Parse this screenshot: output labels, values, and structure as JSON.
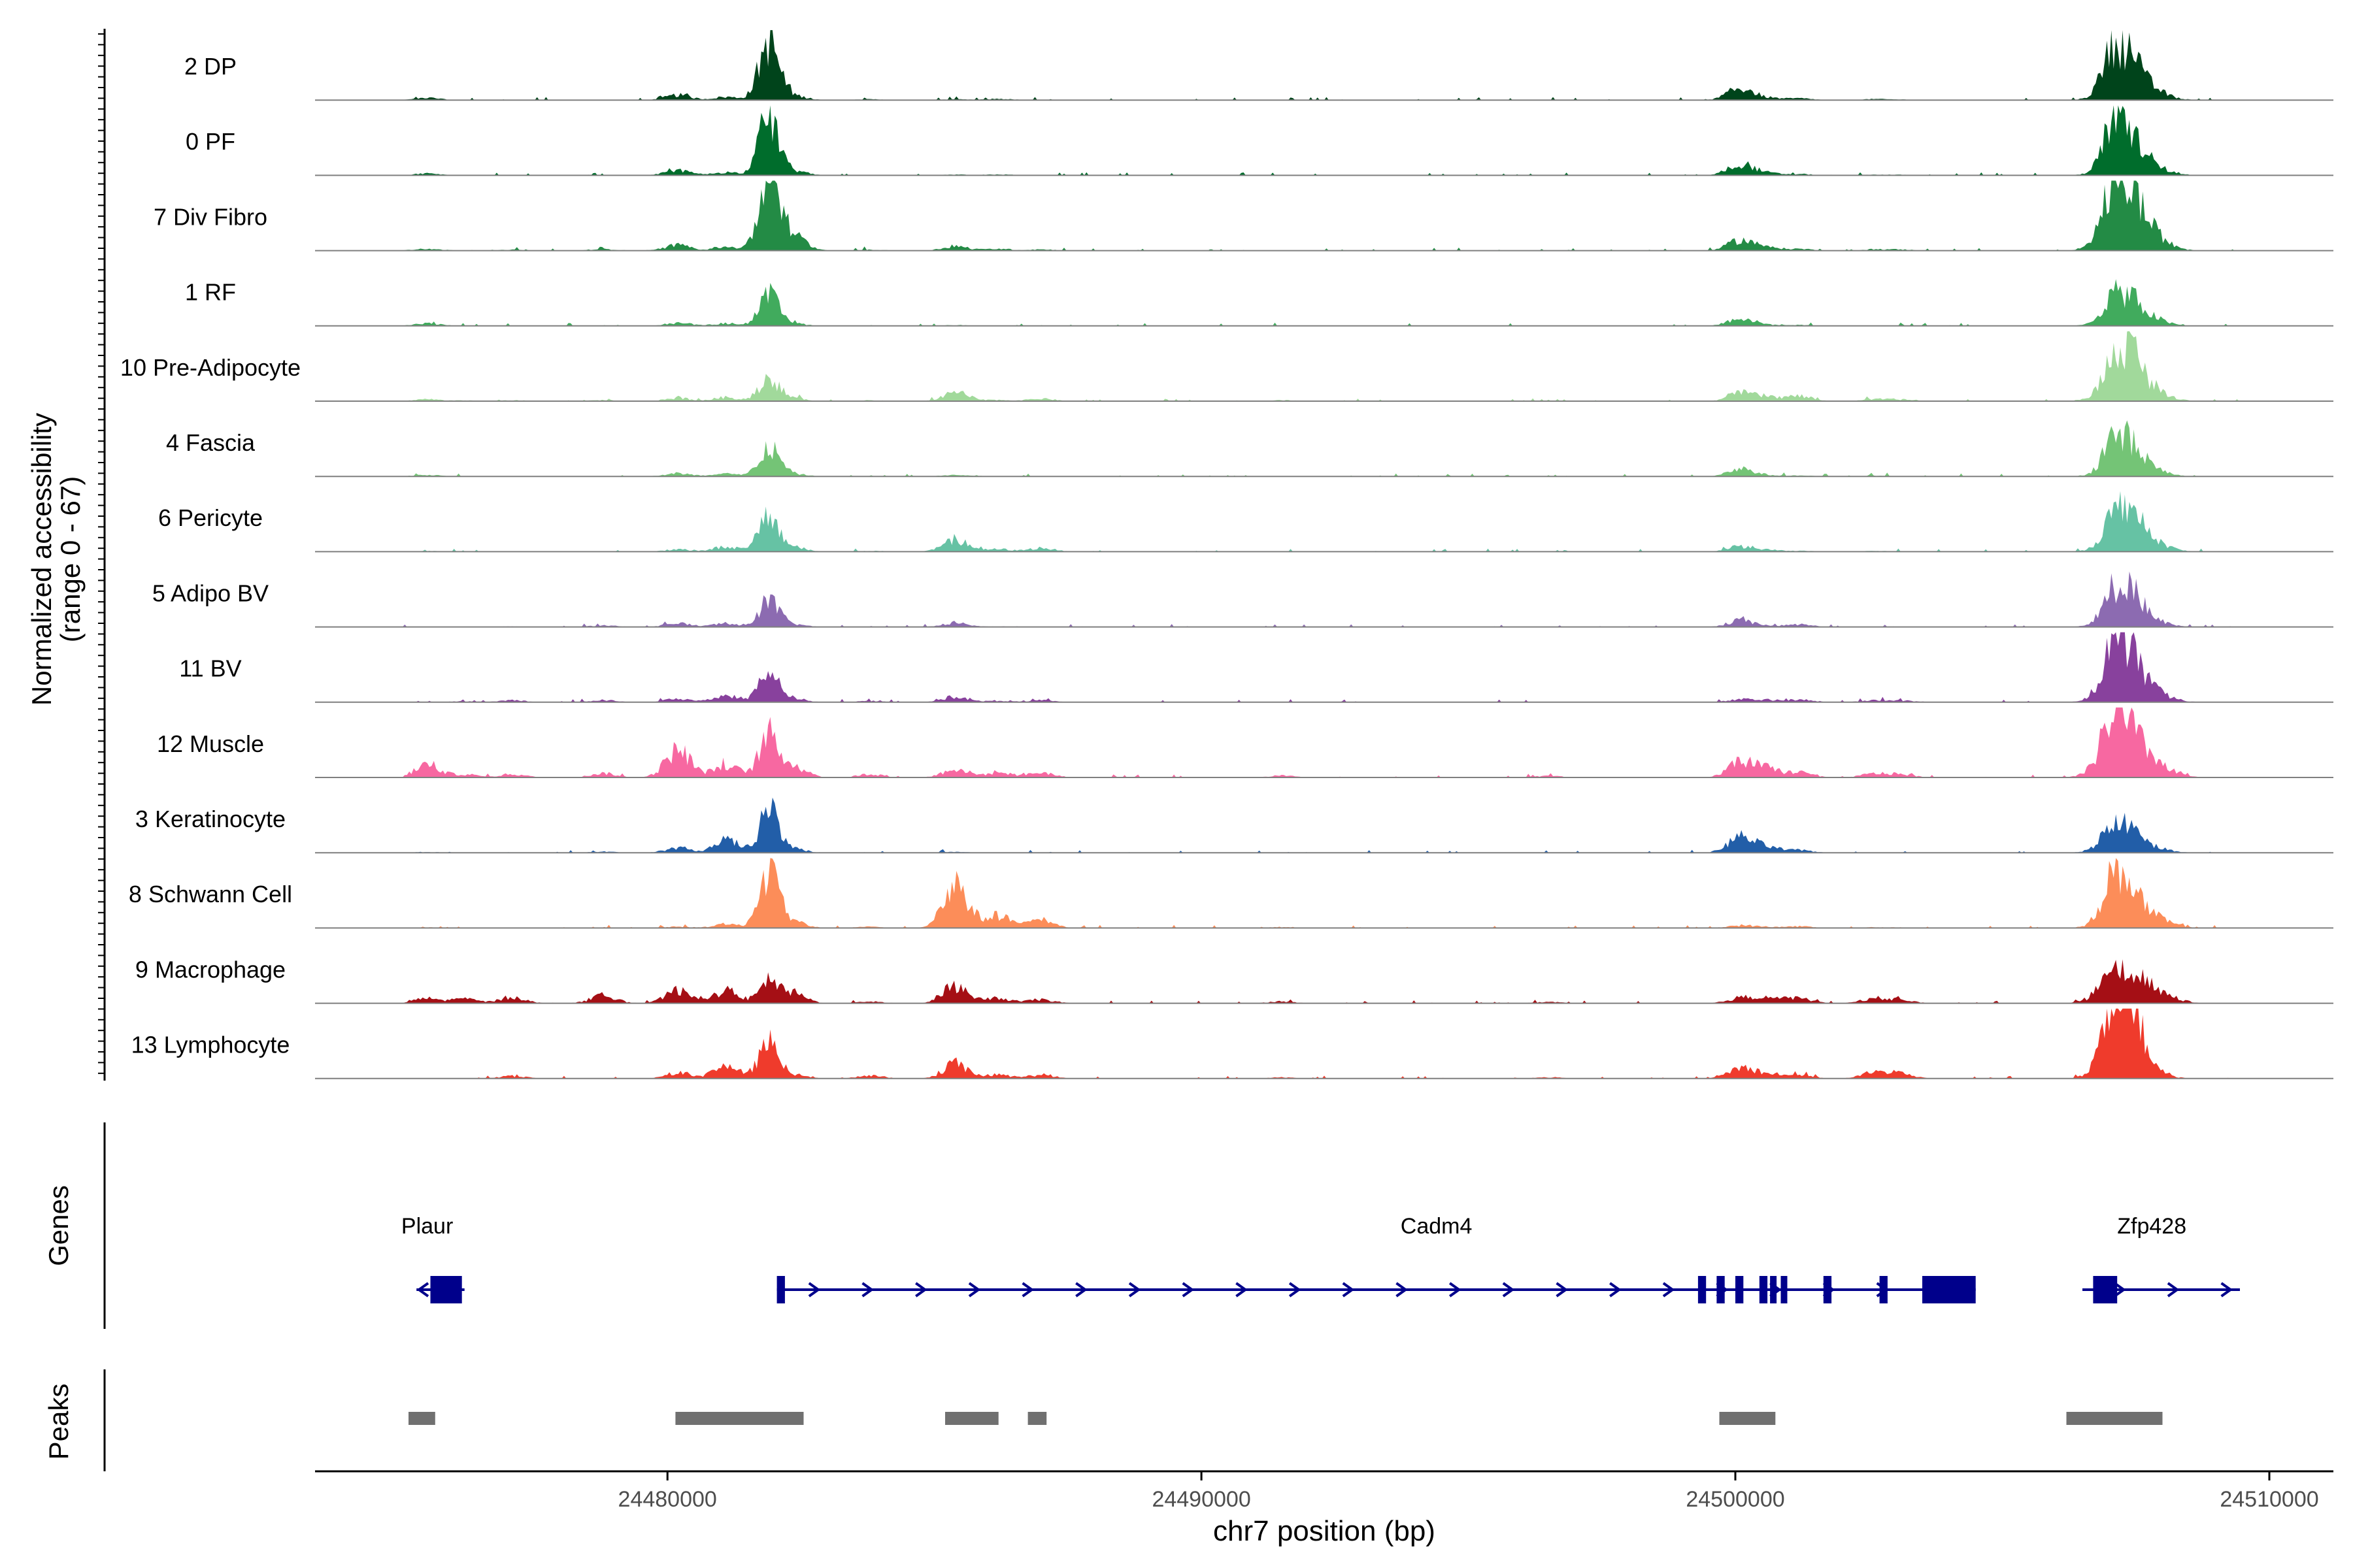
{
  "chart_data": {
    "type": "area",
    "title": "",
    "region": "chr7",
    "xlabel": "chr7 position (bp)",
    "ylabel_line1": "Normalized accessibility",
    "ylabel_line2": "(range 0 - 67)",
    "ylim": [
      0,
      67
    ],
    "xlim": [
      24473400,
      24511200
    ],
    "x_ticks": [
      {
        "value": 24480000,
        "label": "24480000"
      },
      {
        "value": 24490000,
        "label": "24490000"
      },
      {
        "value": 24500000,
        "label": "24500000"
      },
      {
        "value": 24510000,
        "label": "24510000"
      }
    ],
    "peak_template": [
      [
        24475500,
        6
      ],
      [
        24476200,
        3
      ],
      [
        24477100,
        4
      ],
      [
        24478800,
        5
      ],
      [
        24480200,
        12
      ],
      [
        24481100,
        12
      ],
      [
        24481900,
        55
      ],
      [
        24482350,
        12
      ],
      [
        24483800,
        4
      ],
      [
        24485400,
        14
      ],
      [
        24486200,
        6
      ],
      [
        24487000,
        6
      ],
      [
        24491500,
        3
      ],
      [
        24496500,
        3
      ],
      [
        24500100,
        25
      ],
      [
        24500600,
        10
      ],
      [
        24501200,
        8
      ],
      [
        24502600,
        6
      ],
      [
        24503100,
        5
      ],
      [
        24506800,
        8
      ],
      [
        24507050,
        45
      ],
      [
        24507400,
        40
      ],
      [
        24507750,
        22
      ],
      [
        24508150,
        8
      ]
    ],
    "series": [
      {
        "name": "2 DP",
        "color": "#00441b",
        "scales": [
          0.35,
          0,
          0,
          0,
          0.4,
          0.25,
          1.0,
          0.35,
          0.2,
          0.05,
          0.2,
          0.05,
          0.05,
          0.05,
          0.45,
          0.2,
          0.2,
          0.15,
          0.1,
          0.3,
          1.0,
          0.9,
          0.55,
          0.2
        ]
      },
      {
        "name": "0 PF",
        "color": "#006d2c",
        "scales": [
          0.3,
          0,
          0,
          0,
          0.4,
          0.25,
          1.0,
          0.35,
          0.1,
          0.05,
          0.15,
          0.05,
          0.05,
          0.05,
          0.45,
          0.2,
          0.15,
          0.1,
          0.1,
          0.3,
          0.95,
          0.85,
          0.5,
          0.2
        ]
      },
      {
        "name": "7 Div Fibro",
        "color": "#238b45",
        "scales": [
          0.3,
          0.1,
          0.2,
          0.3,
          0.45,
          0.3,
          1.2,
          1.2,
          0.2,
          0.3,
          0.3,
          0.2,
          0.1,
          0.1,
          0.4,
          0.3,
          0.2,
          0.2,
          0.2,
          0.5,
          1.2,
          1.25,
          0.9,
          0.3
        ]
      },
      {
        "name": "1 RF",
        "color": "#41ab5d",
        "scales": [
          0.4,
          0.05,
          0.05,
          0.05,
          0.25,
          0.2,
          0.5,
          0.2,
          0.05,
          0.05,
          0.05,
          0.05,
          0.05,
          0.05,
          0.3,
          0.1,
          0.1,
          0.05,
          0.05,
          0.2,
          0.55,
          0.55,
          0.4,
          0.1
        ]
      },
      {
        "name": "10 Pre-Adipocyte",
        "color": "#a1d99b",
        "scales": [
          0.3,
          0.2,
          0.2,
          0.2,
          0.25,
          0.3,
          0.4,
          0.25,
          0.2,
          0.6,
          0.2,
          0.4,
          0.3,
          0.1,
          0.3,
          0.4,
          0.6,
          0.3,
          0.3,
          0.4,
          0.7,
          1.1,
          0.6,
          0.3
        ]
      },
      {
        "name": "4 Fascia",
        "color": "#74c476",
        "scales": [
          0.25,
          0.05,
          0.05,
          0.05,
          0.25,
          0.2,
          0.5,
          0.2,
          0.05,
          0.1,
          0.05,
          0.05,
          0.05,
          0.05,
          0.3,
          0.1,
          0.1,
          0.1,
          0.05,
          0.2,
          0.7,
          0.7,
          0.4,
          0.1
        ]
      },
      {
        "name": "6 Pericyte",
        "color": "#66c2a4",
        "scales": [
          0.1,
          0.05,
          0.05,
          0.05,
          0.2,
          0.4,
          0.6,
          0.35,
          0.2,
          0.8,
          0.4,
          0.6,
          0.05,
          0.05,
          0.2,
          0.15,
          0.1,
          0.1,
          0.05,
          0.3,
          0.6,
          1.0,
          0.6,
          0.2
        ]
      },
      {
        "name": "5 Adipo BV",
        "color": "#8c6bb1",
        "scales": [
          0.05,
          0.05,
          0.1,
          0.3,
          0.3,
          0.3,
          0.45,
          0.2,
          0.05,
          0.3,
          0.05,
          0.05,
          0.05,
          0.05,
          0.25,
          0.1,
          0.3,
          0.05,
          0.05,
          0.25,
          0.6,
          0.9,
          0.4,
          0.1
        ]
      },
      {
        "name": "11 BV",
        "color": "#88419d",
        "scales": [
          0.05,
          0.3,
          0.5,
          0.4,
          0.3,
          0.5,
          0.6,
          0.3,
          0.3,
          0.4,
          0.2,
          0.3,
          0.05,
          0.05,
          0.1,
          0.2,
          0.3,
          0.3,
          0.3,
          0.6,
          1.0,
          1.0,
          0.6,
          0.3
        ]
      },
      {
        "name": "12 Muscle",
        "color": "#f768a1",
        "scales": [
          2.0,
          1.0,
          0.8,
          0.8,
          2.2,
          1.0,
          0.7,
          0.9,
          0.8,
          0.6,
          0.8,
          0.8,
          0.6,
          0.5,
          0.6,
          0.8,
          0.6,
          0.6,
          0.6,
          1.0,
          1.1,
          0.9,
          0.8,
          0.6
        ]
      },
      {
        "name": "3 Keratinocyte",
        "color": "#225ea8",
        "scales": [
          0.1,
          0.05,
          0.1,
          0.2,
          0.4,
          1.0,
          0.7,
          0.3,
          0.1,
          0.05,
          0.05,
          0.05,
          0.05,
          0.05,
          0.6,
          0.5,
          0.3,
          0.05,
          0.05,
          0.3,
          0.5,
          0.5,
          0.3,
          0.1
        ]
      },
      {
        "name": "8 Schwann Cell",
        "color": "#fc8d59",
        "scales": [
          0.1,
          0.05,
          0.05,
          0.05,
          0.1,
          0.3,
          1.0,
          0.5,
          0.3,
          3.0,
          2.0,
          1.3,
          0.3,
          0.1,
          0.1,
          0.1,
          0.2,
          0.1,
          0.1,
          0.4,
          1.0,
          0.9,
          0.5,
          0.4
        ]
      },
      {
        "name": "9 Macrophage",
        "color": "#a50f15",
        "scales": [
          0.8,
          1.5,
          1.5,
          1.5,
          1.0,
          1.0,
          0.35,
          0.8,
          0.4,
          1.2,
          0.8,
          0.6,
          0.6,
          0.4,
          0.2,
          0.6,
          0.6,
          0.8,
          0.6,
          0.8,
          0.5,
          0.55,
          0.7,
          0.6
        ]
      },
      {
        "name": "13 Lymphocyte",
        "color": "#ef3b2c",
        "scales": [
          0.05,
          0.05,
          0.6,
          0.05,
          0.5,
          1.0,
          0.6,
          0.3,
          0.8,
          1.0,
          0.6,
          0.6,
          0.4,
          0.4,
          0.4,
          0.5,
          0.5,
          1.0,
          1.0,
          0.6,
          1.5,
          1.8,
          0.5,
          0.1
        ]
      }
    ],
    "genes_label": "Genes",
    "genes": [
      {
        "name": "Plaur",
        "start": 24475300,
        "end": 24476200,
        "strand": "-",
        "label_x": 24475500,
        "exons": [
          [
            24475560,
            24476150
          ]
        ]
      },
      {
        "name": "Cadm4",
        "start": 24482050,
        "end": 24504500,
        "strand": "+",
        "label_x": 24494400,
        "exons": [
          [
            24482050,
            24482200
          ],
          [
            24499300,
            24499450
          ],
          [
            24499650,
            24499800
          ],
          [
            24500000,
            24500150
          ],
          [
            24500450,
            24500600
          ],
          [
            24500650,
            24500750
          ],
          [
            24500850,
            24500920
          ],
          [
            24501650,
            24501800
          ],
          [
            24502700,
            24502850
          ],
          [
            24503500,
            24504500
          ]
        ]
      },
      {
        "name": "Zfp428",
        "start": 24506500,
        "end": 24509450,
        "strand": "+",
        "label_x": 24507800,
        "exons": [
          [
            24506700,
            24507150
          ]
        ]
      }
    ],
    "peaks_label": "Peaks",
    "peaks": [
      [
        24475150,
        24475650
      ],
      [
        24480150,
        24482550
      ],
      [
        24485200,
        24486200
      ],
      [
        24486750,
        24487100
      ],
      [
        24499700,
        24500750
      ],
      [
        24506200,
        24508000
      ]
    ]
  }
}
